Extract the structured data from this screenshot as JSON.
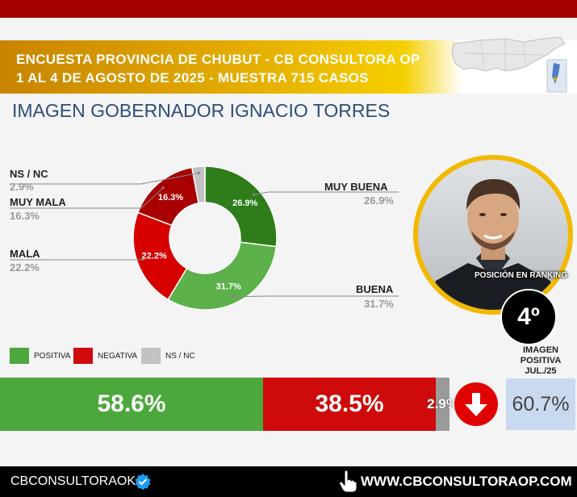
{
  "header": {
    "title_line1": "ENCUESTA PROVINCIA DE CHUBUT - CB CONSULTORA OP",
    "title_line2": "1 AL 4 DE AGOSTO DE 2025 - MUESTRA 715 CASOS",
    "subtitle": "IMAGEN GOBERNADOR  IGNACIO TORRES"
  },
  "colors": {
    "top_bar": "#a50000",
    "muy_buena": "#2e7d1a",
    "buena": "#5cb14a",
    "mala": "#d60000",
    "muy_mala": "#a80000",
    "ns_nc": "#c2c2c2",
    "positiva": "#4ca83c",
    "negativa": "#cf0a0a",
    "previous_box": "#c9d9ef",
    "photo_ring": "#f2b900"
  },
  "chart_data": {
    "type": "pie",
    "variant": "donut",
    "slices": [
      {
        "name": "MUY BUENA",
        "value": 26.9,
        "label": "26.9%",
        "side_label": "26.9%"
      },
      {
        "name": "BUENA",
        "value": 31.7,
        "label": "31.7%",
        "side_label": "31.7%"
      },
      {
        "name": "MALA",
        "value": 22.2,
        "label": "22.2%",
        "side_label": "22.2%"
      },
      {
        "name": "MUY MALA",
        "value": 16.3,
        "label": "16.3%",
        "side_label": "16.3%"
      },
      {
        "name": "NS / NC",
        "value": 2.9,
        "label": "",
        "side_label": "2.9%"
      }
    ]
  },
  "ranking": {
    "label": "POSICIÓN EN RANKING",
    "position": "4º"
  },
  "summary": {
    "legend": {
      "positive": "POSITIVA",
      "negative": "NEGATIVA",
      "ns_nc": "NS / NC"
    },
    "positive_value": 58.6,
    "positive_label": "58.6%",
    "negative_value": 38.5,
    "negative_label": "38.5%",
    "ns_nc_value": 2.9,
    "ns_nc_label": "2.9%",
    "trend_icon": "arrow-down-icon",
    "previous_header_line1": "IMAGEN",
    "previous_header_line2": "POSITIVA",
    "previous_header_line3": "JUL./25",
    "previous_value": "60.7%"
  },
  "footer": {
    "handle": "CBCONSULTORAOK",
    "handle_icon": "verified-badge-icon",
    "url": "WWW.CBCONSULTORAOP.COM",
    "url_icon": "hand-pointer-icon"
  }
}
